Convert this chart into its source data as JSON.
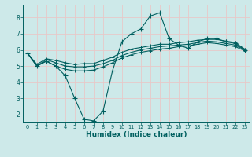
{
  "xlabel": "Humidex (Indice chaleur)",
  "bg_color": "#cde9e9",
  "grid_color_h": "#e8c8c8",
  "grid_color_v": "#e8c8c8",
  "line_color": "#005f5f",
  "xlim": [
    -0.5,
    23.5
  ],
  "ylim": [
    1.5,
    8.8
  ],
  "yticks": [
    2,
    3,
    4,
    5,
    6,
    7,
    8
  ],
  "xticks": [
    0,
    1,
    2,
    3,
    4,
    5,
    6,
    7,
    8,
    9,
    10,
    11,
    12,
    13,
    14,
    15,
    16,
    17,
    18,
    19,
    20,
    21,
    22,
    23
  ],
  "x": [
    0,
    1,
    2,
    3,
    4,
    5,
    6,
    7,
    8,
    9,
    10,
    11,
    12,
    13,
    14,
    15,
    16,
    17,
    18,
    19,
    20,
    21,
    22,
    23
  ],
  "line_main": [
    5.8,
    5.0,
    5.3,
    5.0,
    4.4,
    3.0,
    1.7,
    1.6,
    2.2,
    4.7,
    6.5,
    7.0,
    7.3,
    8.1,
    8.3,
    6.7,
    6.3,
    6.1,
    6.5,
    6.7,
    6.7,
    6.5,
    6.4,
    6.0
  ],
  "line_upper": [
    5.8,
    5.1,
    5.45,
    5.35,
    5.2,
    5.1,
    5.15,
    5.15,
    5.35,
    5.55,
    5.85,
    6.05,
    6.15,
    6.25,
    6.35,
    6.35,
    6.45,
    6.5,
    6.6,
    6.65,
    6.65,
    6.55,
    6.45,
    6.05
  ],
  "line_mid": [
    5.8,
    5.0,
    5.4,
    5.2,
    5.0,
    4.95,
    4.95,
    5.0,
    5.15,
    5.35,
    5.65,
    5.85,
    6.0,
    6.1,
    6.2,
    6.25,
    6.3,
    6.35,
    6.45,
    6.55,
    6.5,
    6.4,
    6.3,
    6.0
  ],
  "line_lower": [
    5.8,
    5.0,
    5.3,
    5.0,
    4.8,
    4.7,
    4.7,
    4.75,
    4.95,
    5.2,
    5.5,
    5.7,
    5.85,
    5.95,
    6.05,
    6.1,
    6.2,
    6.25,
    6.35,
    6.45,
    6.4,
    6.3,
    6.2,
    5.95
  ]
}
